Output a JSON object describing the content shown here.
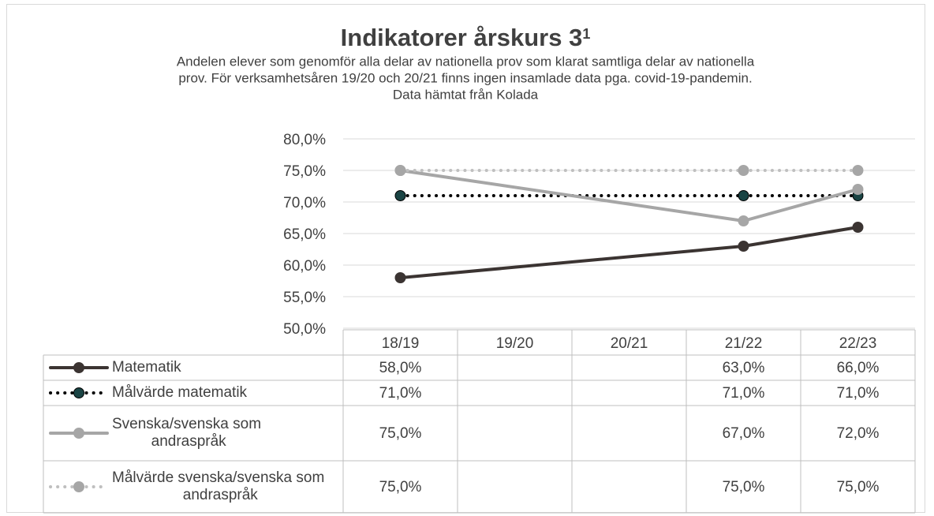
{
  "chart_data": {
    "type": "line",
    "title": "Indikatorer årskurs 3",
    "title_superscript": "1",
    "subtitle": [
      "Andelen elever som genomför alla delar av nationella prov som klarat samtliga delar av nationella",
      "prov. För verksamhetsåren 19/20 och 20/21 finns ingen insamlade data pga. covid-19-pandemin.",
      "Data hämtat från Kolada"
    ],
    "categories": [
      "18/19",
      "19/20",
      "20/21",
      "21/22",
      "22/23"
    ],
    "series": [
      {
        "name": "Matematik",
        "color": "#3b3432",
        "dash": "solid",
        "marker_color": "#3b3432",
        "values": [
          58,
          null,
          null,
          63,
          66
        ],
        "value_labels": [
          "58,0%",
          null,
          null,
          "63,0%",
          "66,0%"
        ]
      },
      {
        "name": "Målvärde matematik",
        "color": "#000000",
        "dash": "dotted",
        "marker_color": "#1a4444",
        "values": [
          71,
          null,
          null,
          71,
          71
        ],
        "value_labels": [
          "71,0%",
          null,
          null,
          "71,0%",
          "71,0%"
        ]
      },
      {
        "name": "Svenska/svenska som andraspråk",
        "color": "#a6a6a6",
        "dash": "solid",
        "marker_color": "#a6a6a6",
        "values": [
          75,
          null,
          null,
          67,
          72
        ],
        "value_labels": [
          "75,0%",
          null,
          null,
          "67,0%",
          "72,0%"
        ]
      },
      {
        "name": "Målvärde svenska/svenska som andraspråk",
        "color": "#bfbfbf",
        "dash": "dotted",
        "marker_color": "#a6a6a6",
        "values": [
          75,
          null,
          null,
          75,
          75
        ],
        "value_labels": [
          "75,0%",
          null,
          null,
          "75,0%",
          "75,0%"
        ]
      }
    ],
    "ylim": [
      50,
      80
    ],
    "yticks": [
      {
        "value": 50,
        "label": "50,0%"
      },
      {
        "value": 55,
        "label": "55,0%"
      },
      {
        "value": 60,
        "label": "60,0%"
      },
      {
        "value": 65,
        "label": "65,0%"
      },
      {
        "value": 70,
        "label": "70,0%"
      },
      {
        "value": 75,
        "label": "75,0%"
      },
      {
        "value": 80,
        "label": "80,0%"
      }
    ],
    "grid": true,
    "connect_gaps": true,
    "data_table": true
  }
}
